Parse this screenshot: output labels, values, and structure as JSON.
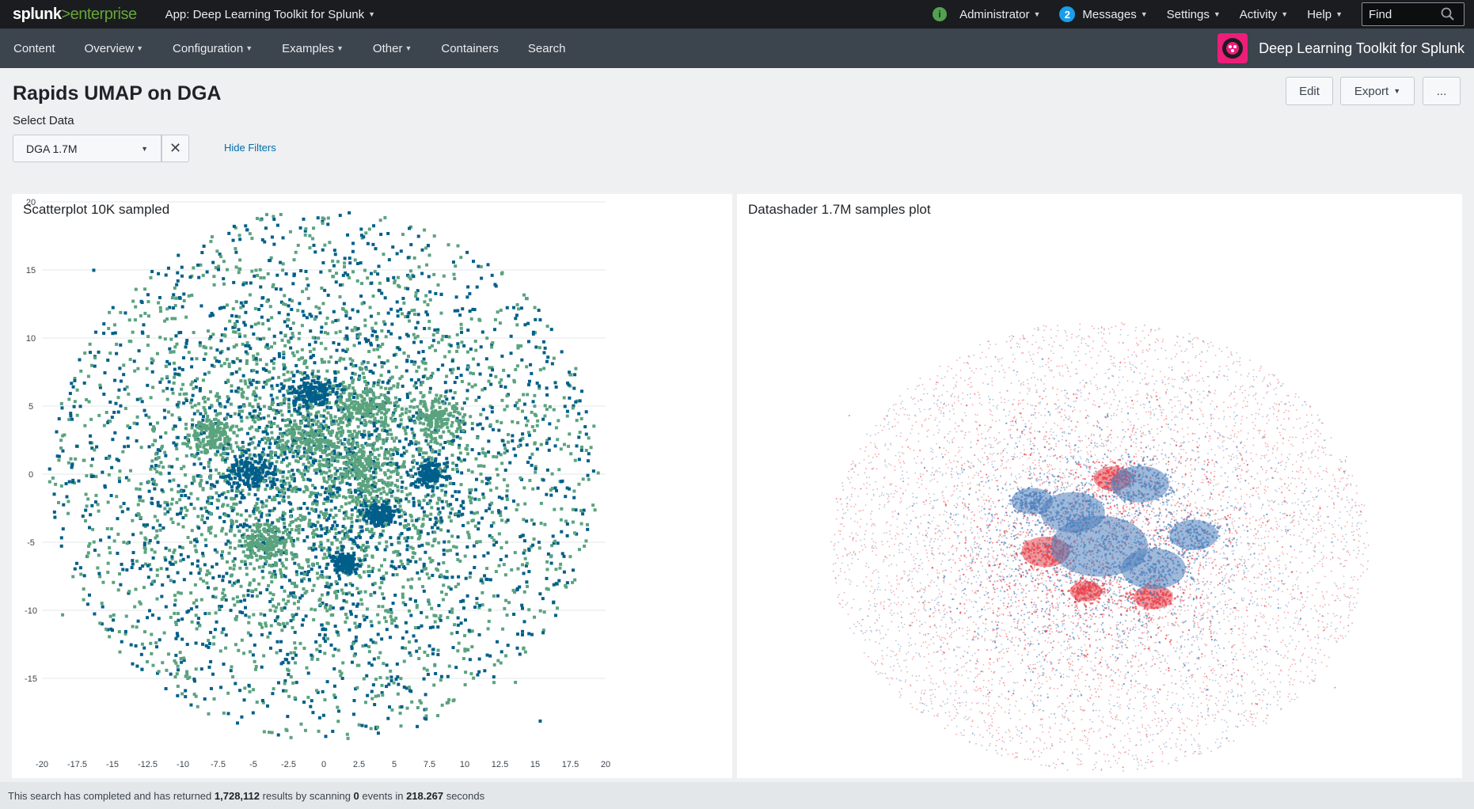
{
  "topbar": {
    "logo_word": "splunk",
    "logo_suffix": ">enterprise",
    "app_menu": "App: Deep Learning Toolkit for Splunk",
    "user": "Administrator",
    "messages_count": "2",
    "messages": "Messages",
    "settings": "Settings",
    "activity": "Activity",
    "help": "Help",
    "find_placeholder": "Find",
    "status_icon": "i"
  },
  "nav": {
    "items": [
      "Content",
      "Overview",
      "Configuration",
      "Examples",
      "Other",
      "Containers",
      "Search"
    ],
    "brand_title": "Deep Learning Toolkit for Splunk"
  },
  "header": {
    "title": "Rapids UMAP on DGA",
    "edit": "Edit",
    "export": "Export",
    "more": "..."
  },
  "filters": {
    "label": "Select Data",
    "selected": "DGA 1.7M",
    "hide": "Hide Filters"
  },
  "panels": {
    "left_title": "Scatterplot 10K sampled",
    "right_title": "Datashader 1.7M samples plot"
  },
  "footer": {
    "prefix": "This search has completed and has returned",
    "results": "1,728,112",
    "middle": "results by scanning",
    "events": "0",
    "middle2": "events in",
    "seconds": "218.267",
    "suffix": "seconds"
  },
  "colors": {
    "series_a": "#005f8a",
    "series_b": "#5aa37f",
    "shader_red": "#e8424b",
    "shader_blue": "#4f82bd"
  },
  "chart_data": [
    {
      "type": "scatter",
      "title": "Scatterplot 10K sampled",
      "xlim": [
        -20,
        20
      ],
      "ylim": [
        -20,
        20
      ],
      "x_ticks": [
        "-20",
        "-17.5",
        "-15",
        "-12.5",
        "-10",
        "-7.5",
        "-5",
        "-2.5",
        "0",
        "2.5",
        "5",
        "7.5",
        "10",
        "12.5",
        "15",
        "17.5",
        "20"
      ],
      "y_ticks": [
        "20",
        "15",
        "10",
        "5",
        "0",
        "-5",
        "-10",
        "-15"
      ],
      "grid": true,
      "legend": "none",
      "series": [
        {
          "color": "#005f8a",
          "clusters": [
            [
              -1,
              6,
              1.3
            ],
            [
              -5,
              0,
              1.5
            ],
            [
              1.5,
              -6.5,
              0.8
            ],
            [
              7.5,
              0,
              0.9
            ],
            [
              4,
              -3,
              1
            ]
          ]
        },
        {
          "color": "#5aa37f",
          "clusters": [
            [
              -1,
              2.5,
              2
            ],
            [
              3,
              0.5,
              2.2
            ],
            [
              -4,
              -5,
              1.5
            ],
            [
              3,
              5,
              1.8
            ],
            [
              -8,
              3,
              1.5
            ],
            [
              8,
              4,
              1.5
            ]
          ]
        }
      ]
    },
    {
      "type": "scatter",
      "title": "Datashader 1.7M samples plot",
      "xlim": [
        -20,
        20
      ],
      "ylim": [
        -20,
        20
      ],
      "grid": false,
      "legend": "none",
      "series": [
        {
          "color": "#e8424b",
          "clusters": [
            [
              1,
              6,
              1.2
            ],
            [
              -4,
              -0.5,
              1.5
            ],
            [
              4,
              -4.5,
              1.2
            ],
            [
              -1,
              -4,
              1
            ]
          ]
        },
        {
          "color": "#4f82bd",
          "clusters": [
            [
              3,
              5.5,
              1.8
            ],
            [
              0,
              0,
              3
            ],
            [
              4,
              -2,
              2
            ],
            [
              -2,
              3,
              2
            ],
            [
              7,
              1,
              1.5
            ],
            [
              -5,
              4,
              1.3
            ]
          ]
        }
      ]
    }
  ]
}
